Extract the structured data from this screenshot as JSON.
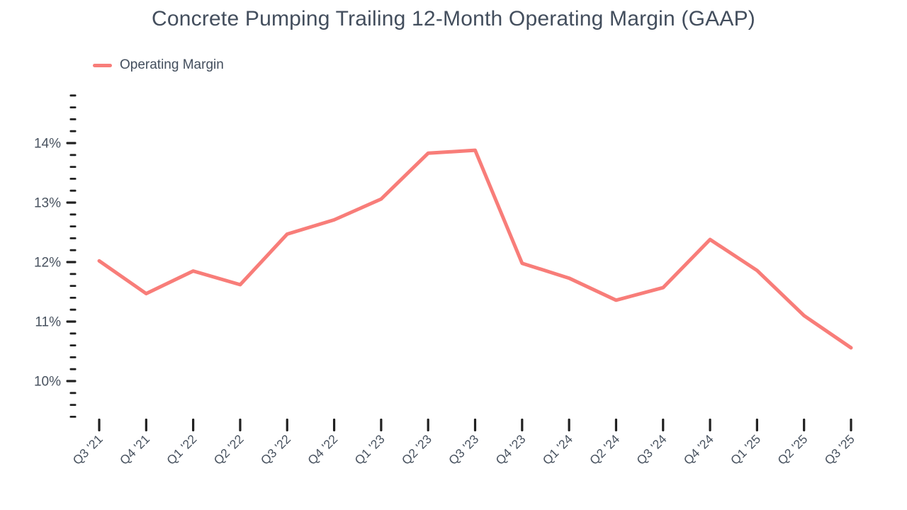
{
  "title": "Concrete Pumping Trailing 12-Month Operating Margin (GAAP)",
  "legend": {
    "items": [
      {
        "label": "Operating Margin",
        "color": "#f87d79"
      }
    ],
    "position": "top-left"
  },
  "colors": {
    "series_line": "#f87d79",
    "axis_text": "#48525f",
    "title_text": "#434e5d",
    "tick_mark": "#212121",
    "background": "#ffffff"
  },
  "chart_data": {
    "type": "line",
    "title": "Concrete Pumping Trailing 12-Month Operating Margin (GAAP)",
    "categories": [
      "Q3 '21",
      "Q4 '21",
      "Q1 '22",
      "Q2 '22",
      "Q3 '22",
      "Q4 '22",
      "Q1 '23",
      "Q2 '23",
      "Q3 '23",
      "Q4 '23",
      "Q1 '24",
      "Q2 '24",
      "Q3 '24",
      "Q4 '24",
      "Q1 '25",
      "Q2 '25",
      "Q3 '25"
    ],
    "series": [
      {
        "name": "Operating Margin",
        "values": [
          12.02,
          11.47,
          11.85,
          11.62,
          12.47,
          12.71,
          13.06,
          13.83,
          13.88,
          11.98,
          11.73,
          11.36,
          11.57,
          12.38,
          11.86,
          11.1,
          10.56
        ]
      }
    ],
    "xlabel": "",
    "ylabel": "",
    "ylim": [
      9.4,
      14.8
    ],
    "ytick_major": [
      10,
      11,
      12,
      13,
      14
    ],
    "ytick_minor_step": 0.2,
    "ytick_format": "{v}%",
    "grid": false,
    "legend_position": "top-left"
  }
}
